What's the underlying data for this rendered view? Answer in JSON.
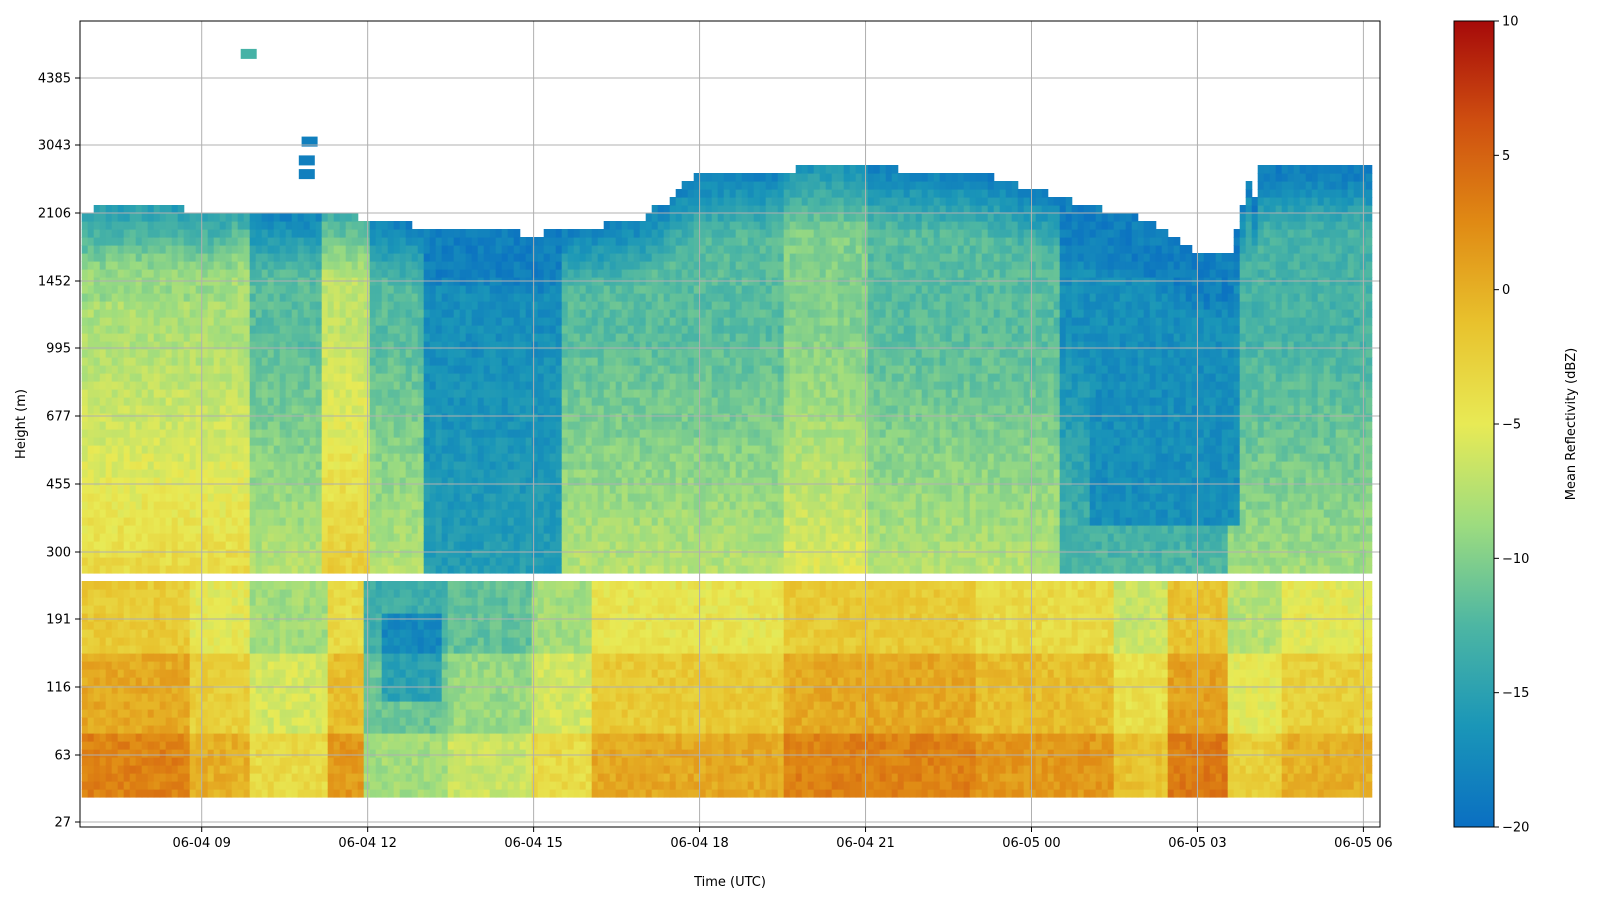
{
  "chart_data": {
    "type": "heatmap",
    "title": "",
    "xlabel": "Time (UTC)",
    "ylabel": "Height (m)",
    "colorbar_label": "Mean Reflectivity (dBZ)",
    "colormap": [
      "#0a6fc2",
      "#1a96b8",
      "#4db6a3",
      "#9ddc7f",
      "#e8ea55",
      "#e8c22d",
      "#e08a14",
      "#cf4f10",
      "#a60a0a"
    ],
    "zlim": [
      -20,
      10
    ],
    "colorbar_ticks": [
      -20,
      -15,
      -10,
      -5,
      0,
      5,
      10
    ],
    "colorbar_tick_labels": [
      "−20",
      "−15",
      "−10",
      "−5",
      "0",
      "5",
      "10"
    ],
    "y_ticks": [
      "27",
      "63",
      "116",
      "191",
      "300",
      "455",
      "677",
      "995",
      "1452",
      "2106",
      "3043",
      "4385"
    ],
    "x_ticks": [
      "06-04 09",
      "06-04 12",
      "06-04 15",
      "06-04 18",
      "06-04 21",
      "06-05 00",
      "06-05 03",
      "06-05 06"
    ],
    "x_range_hours": [
      6.8,
      30.3
    ],
    "x_tick_hours": [
      9,
      12,
      15,
      18,
      21,
      24,
      27,
      30
    ],
    "grid": true,
    "legend": "colorbar-right",
    "data_gap_height_m": [
      245,
      265
    ],
    "description_grid": {
      "note": "Mean reflectivity (dBZ), rows = height levels (27 m to ~5000 m), columns = time in hours since 06-04 00 UTC",
      "time_hours": [
        7,
        8,
        9,
        10,
        11,
        12,
        13,
        14,
        15,
        16,
        17,
        18,
        19,
        20,
        21,
        22,
        23,
        24,
        25,
        26,
        27,
        28,
        29,
        30
      ],
      "height_m": [
        40,
        63,
        90,
        116,
        150,
        191,
        220,
        300,
        380,
        455,
        560,
        677,
        820,
        995,
        1200,
        1452,
        1750,
        2106
      ],
      "cloud_top_m": [
        2150,
        2180,
        2140,
        2130,
        2120,
        2050,
        1950,
        1950,
        1870,
        1950,
        2050,
        2600,
        2600,
        2700,
        2700,
        2650,
        2620,
        2400,
        2200,
        2050,
        1700,
        1700,
        2750,
        2700
      ]
    }
  }
}
